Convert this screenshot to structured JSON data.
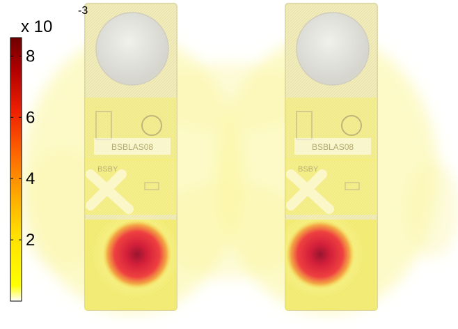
{
  "colorbar": {
    "multiplier_base": "x 10",
    "multiplier_exponent": "-3",
    "ticks": [
      {
        "label": "8",
        "value": 8
      },
      {
        "label": "6",
        "value": 6
      },
      {
        "label": "4",
        "value": 4
      },
      {
        "label": "2",
        "value": 2
      }
    ],
    "range": [
      0,
      8.6
    ],
    "colormap": [
      "#ffffff",
      "#ffff00",
      "#ffcc00",
      "#ff8000",
      "#ff2000",
      "#c00000",
      "#7a0000"
    ]
  },
  "panels": [
    {
      "name": "left-device",
      "label_top": "BSBLAS08",
      "label_bottom": "BSBY"
    },
    {
      "name": "right-device",
      "label_top": "BSBLAS08",
      "label_bottom": "BSBY"
    }
  ],
  "colors": {
    "heat_light": "#ffff88",
    "heat_mid": "#f4f05a",
    "hotspot": "#e0202a",
    "hotspot_core": "#a01020",
    "device_body": "#e8e2c8",
    "device_edge": "#c8bf98"
  }
}
